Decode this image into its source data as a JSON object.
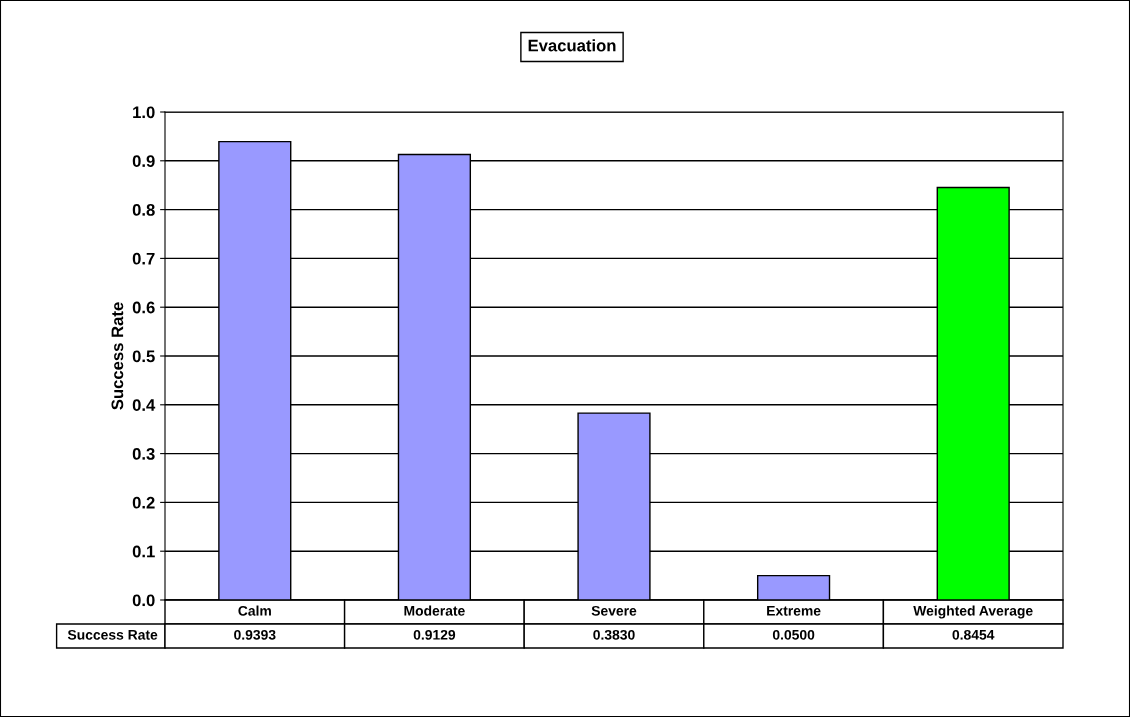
{
  "chart_data": {
    "type": "bar",
    "title": "Evacuation",
    "ylabel": "Success Rate",
    "categories": [
      "Calm",
      "Moderate",
      "Severe",
      "Extreme",
      "Weighted Average"
    ],
    "series": [
      {
        "name": "Success Rate",
        "colors": [
          "#9999ff",
          "#9999ff",
          "#9999ff",
          "#9999ff",
          "#00ff00"
        ],
        "values": [
          0.9393,
          0.9129,
          0.383,
          0.05,
          0.8454
        ],
        "value_labels": [
          "0.9393",
          "0.9129",
          "0.3830",
          "0.0500",
          "0.8454"
        ]
      }
    ],
    "ylim": [
      0,
      1.0
    ],
    "yticks": [
      {
        "value": 0,
        "label": "0.0"
      },
      {
        "value": 0.1,
        "label": "0.1"
      },
      {
        "value": 0.2,
        "label": "0.2"
      },
      {
        "value": 0.3,
        "label": "0.3"
      },
      {
        "value": 0.4,
        "label": "0.4"
      },
      {
        "value": 0.5,
        "label": "0.5"
      },
      {
        "value": 0.6,
        "label": "0.6"
      },
      {
        "value": 0.7,
        "label": "0.7"
      },
      {
        "value": 0.8,
        "label": "0.8"
      },
      {
        "value": 0.9,
        "label": "0.9"
      },
      {
        "value": 1.0,
        "label": "1.0"
      }
    ],
    "grid": "y",
    "legend": false
  }
}
